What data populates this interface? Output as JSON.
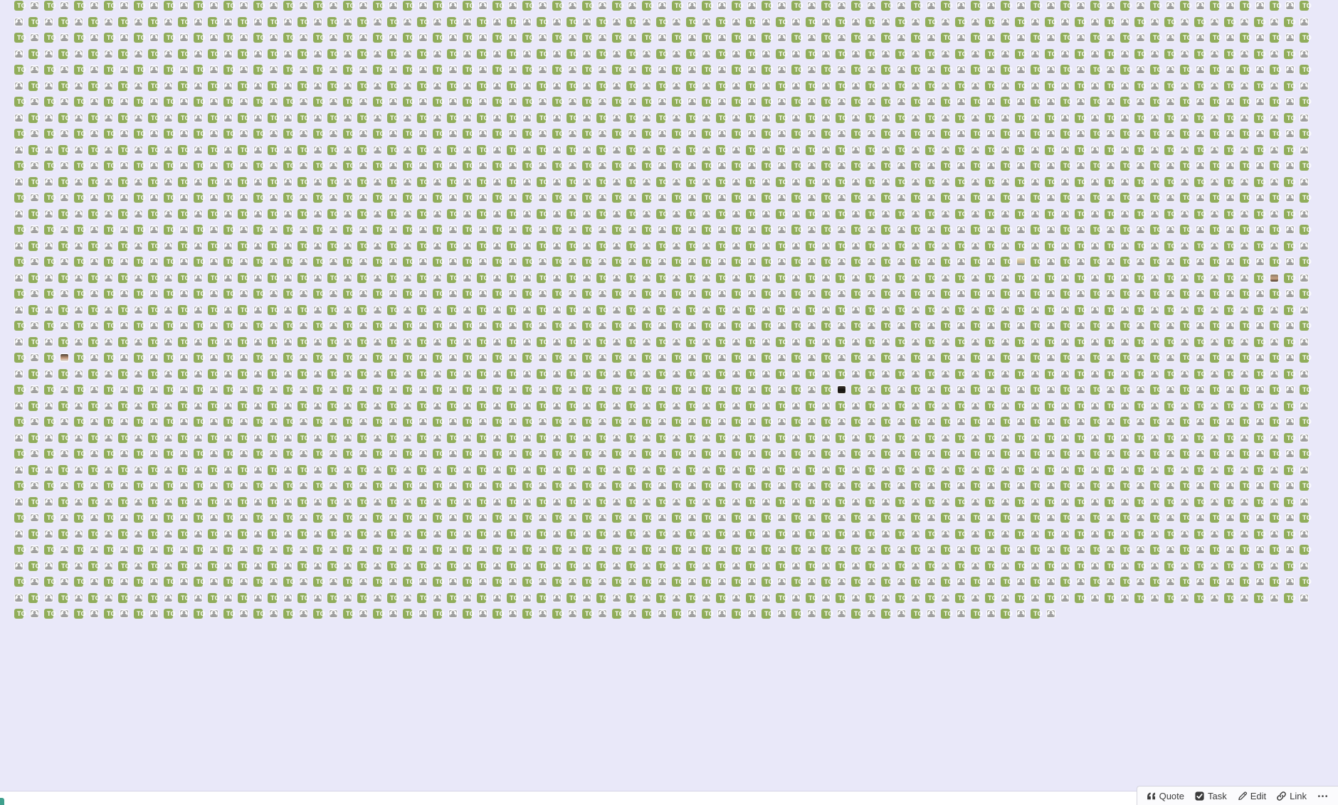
{
  "colors": {
    "page_bg": "#e9e8f9",
    "chip_green": "#90ad5a",
    "chip_text": "#ffffff",
    "avatar_bg": "#ababab",
    "avatar_icon": "#a0a0a0",
    "footer_bg": "#ffffff",
    "footer_border": "#d6d5e6",
    "toolbar_bg": "#fbfbfd",
    "toolbar_border": "#d4d4de",
    "toolbar_text": "#3b3b3b",
    "accent_teal": "#3fa08d"
  },
  "content": {
    "chip_label": "TO",
    "pair_count": 1688,
    "pairs_per_row": 35,
    "photo_avatars": [
      {
        "index": 729,
        "description": "light photo of a person at a desk",
        "colors": [
          "#e5dcc3",
          "#c9ba93",
          "#8d99a7"
        ]
      },
      {
        "index": 781,
        "description": "small portrait, tan skin dark hair",
        "colors": [
          "#8a7b66",
          "#c7a183",
          "#4a3b2e"
        ]
      },
      {
        "index": 958,
        "description": "portrait of man, dark hair, light shirt",
        "colors": [
          "#4a3c30",
          "#c49a7d",
          "#e6e4df"
        ]
      },
      {
        "index": 1071,
        "description": "very dark photo avatar",
        "colors": [
          "#3a3330",
          "#171412",
          "#2a2622"
        ]
      }
    ]
  },
  "toolbar": {
    "items": [
      {
        "label": "Quote",
        "icon": "quote-icon"
      },
      {
        "label": "Task",
        "icon": "task-icon"
      },
      {
        "label": "Edit",
        "icon": "edit-icon"
      },
      {
        "label": "Link",
        "icon": "link-icon"
      },
      {
        "label": "",
        "icon": "more-icon"
      }
    ]
  }
}
